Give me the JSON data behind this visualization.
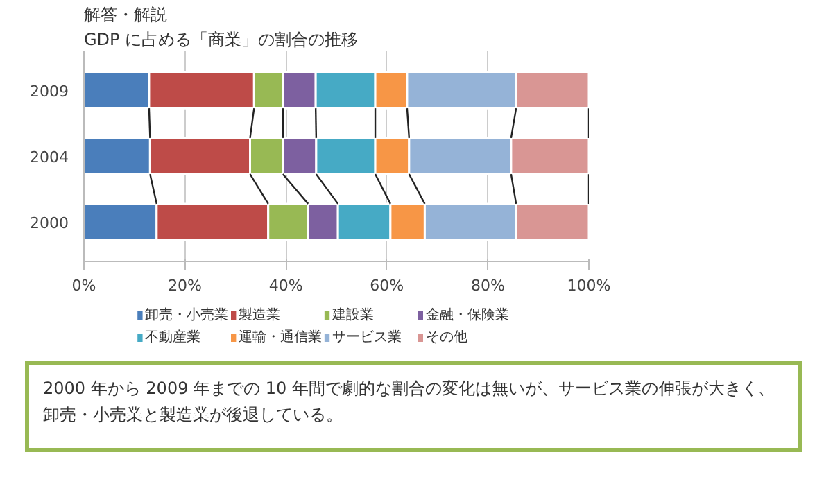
{
  "chart_data": {
    "type": "bar",
    "orientation": "horizontal",
    "stacked": true,
    "title": "解答・解説",
    "subtitle": "GDP に占める「商業」の割合の推移",
    "categories": [
      "2009",
      "2004",
      "2000"
    ],
    "series": [
      {
        "name": "卸売・小売業",
        "color": "#4a7ebb",
        "values": [
          12.9,
          13.1,
          14.4
        ]
      },
      {
        "name": "製造業",
        "color": "#be4b48",
        "values": [
          20.8,
          19.8,
          22.1
        ]
      },
      {
        "name": "建設業",
        "color": "#98b954",
        "values": [
          5.7,
          6.5,
          7.9
        ]
      },
      {
        "name": "金融・保険業",
        "color": "#7d60a0",
        "values": [
          6.5,
          6.6,
          5.9
        ]
      },
      {
        "name": "不動産業",
        "color": "#46aac5",
        "values": [
          11.8,
          11.7,
          10.4
        ]
      },
      {
        "name": "運輸・通信業",
        "color": "#f79646",
        "values": [
          6.3,
          6.7,
          6.8
        ]
      },
      {
        "name": "サービス業",
        "color": "#95b3d7",
        "values": [
          21.6,
          20.2,
          18.1
        ]
      },
      {
        "name": "その他",
        "color": "#d99694",
        "values": [
          14.4,
          15.4,
          14.4
        ]
      }
    ],
    "xlim": [
      0,
      100
    ],
    "xticks": [
      {
        "value": 0,
        "label": "0%"
      },
      {
        "value": 20,
        "label": "20%"
      },
      {
        "value": 40,
        "label": "40%"
      },
      {
        "value": 60,
        "label": "60%"
      },
      {
        "value": 80,
        "label": "80%"
      },
      {
        "value": 100,
        "label": "100%"
      }
    ],
    "grid": "x",
    "legend": "bottom",
    "annotations": [
      "2000 年から 2009 年までの 10 年間で劇的な割合の変化は無いが、サービス業の伸張が大きく、卸売・小売業と製造業が後退している。"
    ]
  }
}
